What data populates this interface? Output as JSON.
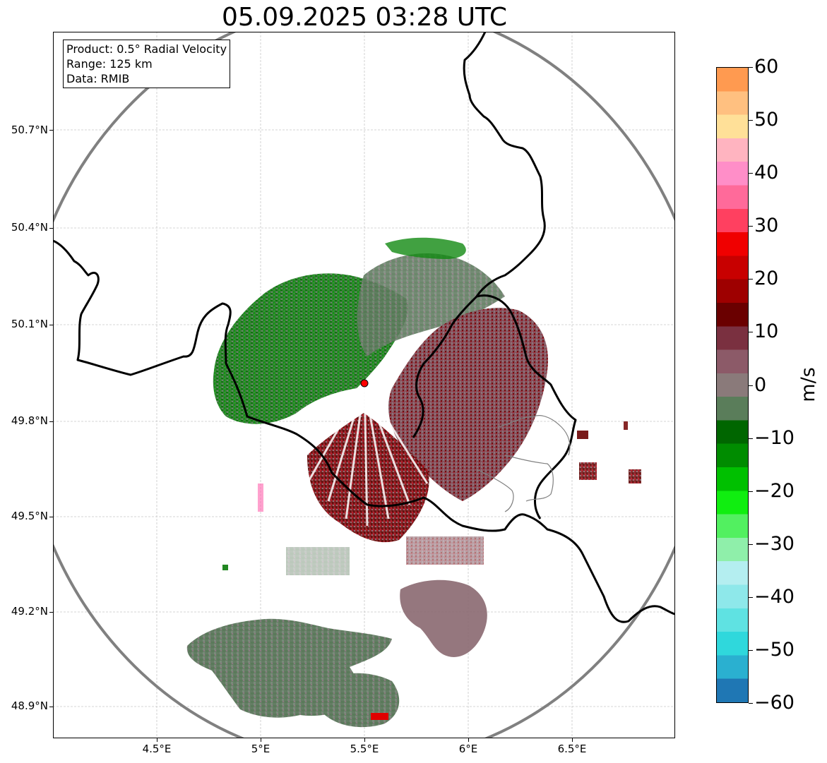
{
  "title": "05.09.2025 03:28 UTC",
  "info_box": {
    "product": "Product: 0.5° Radial Velocity",
    "range": "Range: 125 km",
    "data": "Data: RMIB"
  },
  "axes": {
    "lat_labels": [
      "50.7°N",
      "50.4°N",
      "50.1°N",
      "49.8°N",
      "49.5°N",
      "49.2°N",
      "48.9°N"
    ],
    "lon_labels": [
      "4.5°E",
      "5°E",
      "5.5°E",
      "6°E",
      "6.5°E"
    ],
    "lon_range": [
      4.0,
      7.0
    ],
    "lat_range": [
      48.8,
      50.98
    ]
  },
  "radar_site": {
    "lon": 5.505,
    "lat": 49.914,
    "marker_color": "#ff0000"
  },
  "colorbar": {
    "unit": "m/s",
    "min": -60,
    "max": 60,
    "tick_labels": [
      "60",
      "50",
      "40",
      "30",
      "20",
      "10",
      "0",
      "−10",
      "−20",
      "−30",
      "−40",
      "−50",
      "−60"
    ],
    "stops": [
      "#1f77b4",
      "#2ab0d0",
      "#2fd8dc",
      "#5fe2e2",
      "#8ee8ea",
      "#b4eef0",
      "#8fefaa",
      "#52f060",
      "#10ee10",
      "#00c000",
      "#008c00",
      "#006600",
      "#5a7d5a",
      "#8a7a7a",
      "#8c5a68",
      "#7a3040",
      "#6a0000",
      "#9e0000",
      "#c80000",
      "#f00000",
      "#ff4060",
      "#ff6a9a",
      "#ff8ec8",
      "#ffb4c0",
      "#ffe098",
      "#ffc080",
      "#ff9a50"
    ]
  },
  "colors": {
    "border": "#000000",
    "range_ring": "#808080",
    "grid": "#c8c8c8",
    "inbound_green": "#0a7a0a",
    "outbound_maroon": "#7a0d10",
    "zero_gray_green": "#5f7f5f",
    "zero_gray_red": "#8a6870"
  }
}
